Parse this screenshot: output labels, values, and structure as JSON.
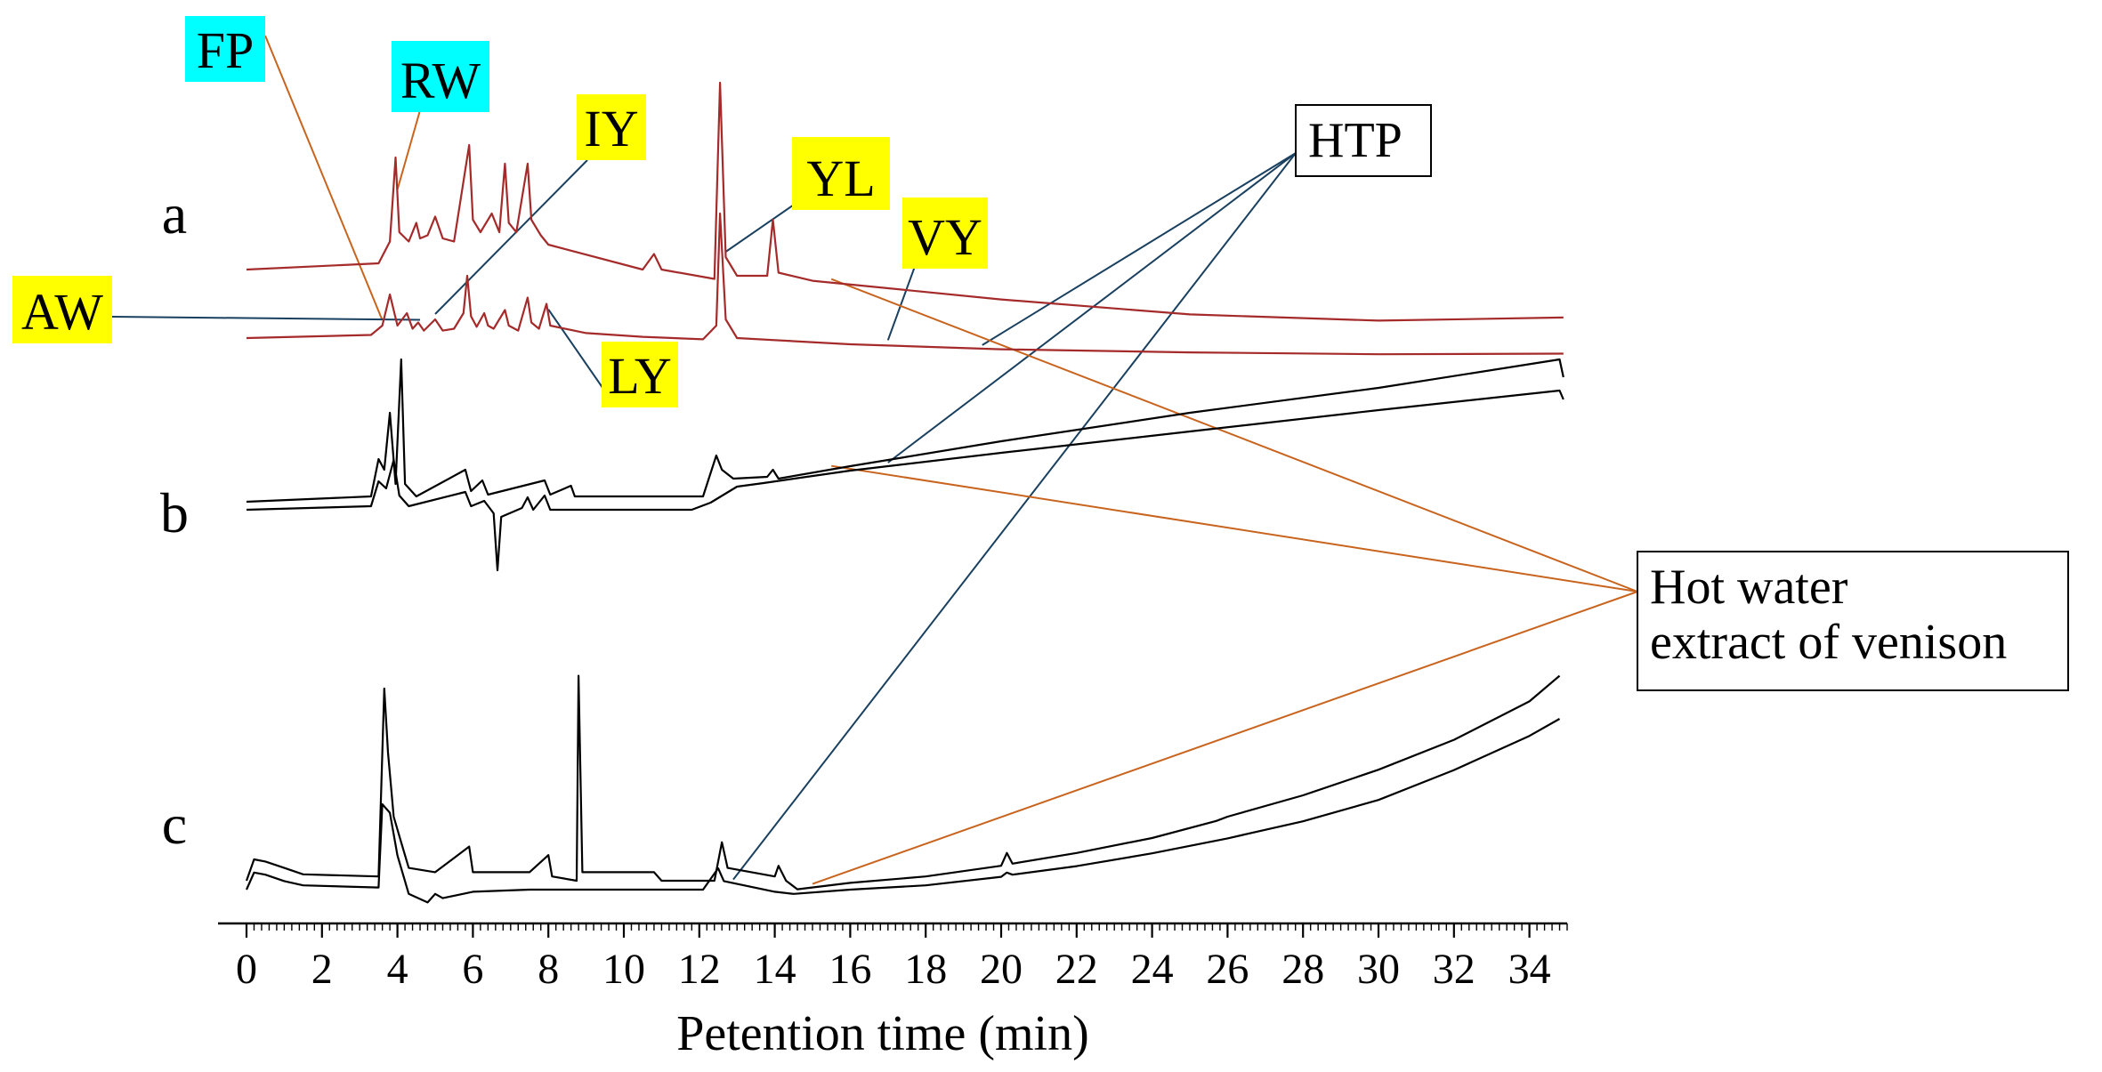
{
  "chart_data": {
    "type": "line",
    "title": "",
    "xlabel": "Petention time (min)",
    "ylabel": "",
    "xlim": [
      0,
      35
    ],
    "x_major_ticks": [
      0,
      2,
      4,
      6,
      8,
      10,
      12,
      14,
      16,
      18,
      20,
      22,
      24,
      26,
      28,
      30,
      32,
      34
    ],
    "x_minor_step": 0.2,
    "grid": false,
    "panels": [
      {
        "label": "a",
        "color": "#a52a2a",
        "series": [
          {
            "name": "HTP",
            "points": [
              [
                0,
                0
              ],
              [
                3.3,
                0.005
              ],
              [
                3.6,
                0.02
              ],
              [
                3.8,
                0.07
              ],
              [
                4.0,
                0.02
              ],
              [
                4.25,
                0.04
              ],
              [
                4.4,
                0.015
              ],
              [
                4.55,
                0.025
              ],
              [
                4.7,
                0.012
              ],
              [
                5.0,
                0.03
              ],
              [
                5.2,
                0.012
              ],
              [
                5.5,
                0.015
              ],
              [
                5.75,
                0.04
              ],
              [
                5.85,
                0.1
              ],
              [
                5.95,
                0.035
              ],
              [
                6.1,
                0.018
              ],
              [
                6.3,
                0.04
              ],
              [
                6.4,
                0.02
              ],
              [
                6.55,
                0.015
              ],
              [
                6.85,
                0.045
              ],
              [
                6.95,
                0.02
              ],
              [
                7.2,
                0.012
              ],
              [
                7.45,
                0.065
              ],
              [
                7.55,
                0.025
              ],
              [
                7.75,
                0.015
              ],
              [
                7.95,
                0.055
              ],
              [
                8.05,
                0.02
              ],
              [
                9.0,
                0.008
              ],
              [
                10.5,
                0.002
              ],
              [
                12.1,
                -0.002
              ],
              [
                12.45,
                0.02
              ],
              [
                12.55,
                0.2
              ],
              [
                12.7,
                0.03
              ],
              [
                13.0,
                0.0
              ],
              [
                16.0,
                -0.01
              ],
              [
                20.0,
                -0.018
              ],
              [
                25.0,
                -0.023
              ],
              [
                30.0,
                -0.026
              ],
              [
                34.9,
                -0.025
              ]
            ]
          },
          {
            "name": "Hot water extract of venison",
            "points": [
              [
                0,
                0
              ],
              [
                3.5,
                0.01
              ],
              [
                3.8,
                0.045
              ],
              [
                3.95,
                0.18
              ],
              [
                4.05,
                0.06
              ],
              [
                4.3,
                0.045
              ],
              [
                4.5,
                0.075
              ],
              [
                4.6,
                0.05
              ],
              [
                4.8,
                0.055
              ],
              [
                5.0,
                0.085
              ],
              [
                5.2,
                0.05
              ],
              [
                5.5,
                0.045
              ],
              [
                5.9,
                0.2
              ],
              [
                6.0,
                0.08
              ],
              [
                6.2,
                0.06
              ],
              [
                6.5,
                0.09
              ],
              [
                6.7,
                0.06
              ],
              [
                6.85,
                0.17
              ],
              [
                6.95,
                0.075
              ],
              [
                7.15,
                0.06
              ],
              [
                7.45,
                0.17
              ],
              [
                7.55,
                0.08
              ],
              [
                7.8,
                0.055
              ],
              [
                8.0,
                0.04
              ],
              [
                10.5,
                0.0
              ],
              [
                10.8,
                0.025
              ],
              [
                11.0,
                0.0
              ],
              [
                12.4,
                -0.015
              ],
              [
                12.55,
                0.3
              ],
              [
                12.7,
                0.02
              ],
              [
                13.0,
                -0.01
              ],
              [
                13.8,
                -0.01
              ],
              [
                13.95,
                0.08
              ],
              [
                14.1,
                -0.005
              ],
              [
                15.0,
                -0.018
              ],
              [
                20.0,
                -0.048
              ],
              [
                25.0,
                -0.072
              ],
              [
                30.0,
                -0.082
              ],
              [
                34.9,
                -0.077
              ]
            ]
          }
        ]
      },
      {
        "label": "b",
        "color": "#000000",
        "series": [
          {
            "name": "HTP",
            "points": [
              [
                0,
                0
              ],
              [
                3.3,
                0.01
              ],
              [
                3.5,
                0.08
              ],
              [
                3.7,
                0.06
              ],
              [
                3.9,
                0.14
              ],
              [
                4.05,
                0.04
              ],
              [
                4.3,
                0.01
              ],
              [
                5.8,
                0.05
              ],
              [
                5.95,
                0.01
              ],
              [
                6.3,
                0.025
              ],
              [
                6.55,
                -0.01
              ],
              [
                6.65,
                -0.17
              ],
              [
                6.75,
                -0.02
              ],
              [
                7.3,
                0.005
              ],
              [
                7.45,
                0.035
              ],
              [
                7.6,
                0.0
              ],
              [
                7.9,
                0.04
              ],
              [
                8.05,
                0.0
              ],
              [
                11.8,
                0.0
              ],
              [
                12.3,
                0.02
              ],
              [
                13.0,
                0.065
              ],
              [
                13.7,
                0.075
              ],
              [
                16.0,
                0.11
              ],
              [
                20.0,
                0.16
              ],
              [
                25.0,
                0.22
              ],
              [
                30.0,
                0.28
              ],
              [
                34.8,
                0.335
              ],
              [
                34.9,
                0.31
              ]
            ]
          },
          {
            "name": "Hot water extract of venison",
            "points": [
              [
                0,
                0
              ],
              [
                3.3,
                0.015
              ],
              [
                3.5,
                0.12
              ],
              [
                3.65,
                0.09
              ],
              [
                3.8,
                0.25
              ],
              [
                3.95,
                0.05
              ],
              [
                4.1,
                0.4
              ],
              [
                4.2,
                0.05
              ],
              [
                4.5,
                0.015
              ],
              [
                5.8,
                0.09
              ],
              [
                5.95,
                0.03
              ],
              [
                6.25,
                0.06
              ],
              [
                6.4,
                0.02
              ],
              [
                7.9,
                0.06
              ],
              [
                8.05,
                0.02
              ],
              [
                8.6,
                0.045
              ],
              [
                8.7,
                0.015
              ],
              [
                12.1,
                0.015
              ],
              [
                12.45,
                0.13
              ],
              [
                12.6,
                0.09
              ],
              [
                12.9,
                0.065
              ],
              [
                13.8,
                0.07
              ],
              [
                13.95,
                0.09
              ],
              [
                14.1,
                0.065
              ],
              [
                16.0,
                0.1
              ],
              [
                20.0,
                0.17
              ],
              [
                25.0,
                0.25
              ],
              [
                30.0,
                0.32
              ],
              [
                34.8,
                0.4
              ],
              [
                34.9,
                0.35
              ]
            ]
          }
        ]
      },
      {
        "label": "c",
        "color": "#000000",
        "series": [
          {
            "name": "HTP",
            "points": [
              [
                0,
                0
              ],
              [
                0.2,
                0.04
              ],
              [
                0.5,
                0.035
              ],
              [
                1.0,
                0.02
              ],
              [
                1.5,
                0.01
              ],
              [
                3.5,
                0.005
              ],
              [
                3.6,
                0.2
              ],
              [
                3.8,
                0.18
              ],
              [
                4.0,
                0.08
              ],
              [
                4.3,
                -0.01
              ],
              [
                4.8,
                -0.03
              ],
              [
                5.0,
                -0.01
              ],
              [
                5.2,
                -0.02
              ],
              [
                6.0,
                -0.005
              ],
              [
                7.5,
                0.0
              ],
              [
                12.1,
                0.0
              ],
              [
                12.5,
                0.05
              ],
              [
                12.65,
                0.02
              ],
              [
                14.0,
                -0.005
              ],
              [
                14.5,
                -0.01
              ],
              [
                16.0,
                0.0
              ],
              [
                18.0,
                0.01
              ],
              [
                20.0,
                0.03
              ],
              [
                20.15,
                0.04
              ],
              [
                20.3,
                0.035
              ],
              [
                22.0,
                0.055
              ],
              [
                24.0,
                0.085
              ],
              [
                26.0,
                0.12
              ],
              [
                28.0,
                0.16
              ],
              [
                30.0,
                0.21
              ],
              [
                32.0,
                0.28
              ],
              [
                34.0,
                0.36
              ],
              [
                34.8,
                0.4
              ]
            ]
          },
          {
            "name": "Hot water extract of venison",
            "points": [
              [
                0,
                0
              ],
              [
                0.2,
                0.05
              ],
              [
                0.5,
                0.045
              ],
              [
                1.0,
                0.03
              ],
              [
                1.5,
                0.015
              ],
              [
                3.5,
                0.01
              ],
              [
                3.65,
                0.45
              ],
              [
                3.75,
                0.3
              ],
              [
                3.9,
                0.15
              ],
              [
                4.1,
                0.09
              ],
              [
                4.3,
                0.03
              ],
              [
                5.0,
                0.02
              ],
              [
                5.9,
                0.08
              ],
              [
                6.0,
                0.02
              ],
              [
                7.5,
                0.02
              ],
              [
                8.0,
                0.06
              ],
              [
                8.1,
                0.01
              ],
              [
                8.75,
                0.0
              ],
              [
                8.8,
                0.48
              ],
              [
                8.9,
                0.02
              ],
              [
                10.8,
                0.02
              ],
              [
                11.0,
                0.0
              ],
              [
                12.4,
                0.0
              ],
              [
                12.6,
                0.09
              ],
              [
                12.75,
                0.03
              ],
              [
                14.0,
                0.01
              ],
              [
                14.1,
                0.035
              ],
              [
                14.3,
                0.0
              ],
              [
                14.6,
                -0.02
              ],
              [
                16.0,
                -0.005
              ],
              [
                18.0,
                0.01
              ],
              [
                20.0,
                0.035
              ],
              [
                20.15,
                0.065
              ],
              [
                20.3,
                0.04
              ],
              [
                22.0,
                0.065
              ],
              [
                24.0,
                0.1
              ],
              [
                25.7,
                0.14
              ],
              [
                26.0,
                0.15
              ],
              [
                28.0,
                0.2
              ],
              [
                30.0,
                0.26
              ],
              [
                32.0,
                0.33
              ],
              [
                34.0,
                0.42
              ],
              [
                34.8,
                0.48
              ]
            ]
          }
        ]
      }
    ],
    "peak_labels": [
      {
        "text": "FP",
        "highlight": "#00ffff",
        "x": 3.6,
        "panel": "a",
        "series": 0
      },
      {
        "text": "RW",
        "highlight": "#00ffff",
        "x": 4.0,
        "panel": "a",
        "series": 1
      },
      {
        "text": "IY",
        "highlight": "#ffff00",
        "x": 5.0,
        "panel": "a",
        "series": 0
      },
      {
        "text": "YL",
        "highlight": "#ffff00",
        "x": 12.7,
        "panel": "a",
        "series": 1
      },
      {
        "text": "VY",
        "highlight": "#ffff00",
        "x": 17.0,
        "panel": "a",
        "series": 0
      },
      {
        "text": "AW",
        "highlight": "#ffff00",
        "x": 4.6,
        "panel": "a",
        "series": 0
      },
      {
        "text": "LY",
        "highlight": "#ffff00",
        "x": 8.0,
        "panel": "a",
        "series": 0
      }
    ],
    "annotations": [
      {
        "text": "HTP",
        "boxed": true,
        "series": 0,
        "targets": [
          [
            19.5,
            "a"
          ],
          [
            17.0,
            "b"
          ],
          [
            12.9,
            "c"
          ]
        ],
        "line_color": "#1a4060"
      },
      {
        "text": "Hot water extract of venison",
        "lines": [
          "Hot water",
          "extract of venison"
        ],
        "boxed": true,
        "series": 1,
        "targets": [
          [
            15.5,
            "a"
          ],
          [
            15.5,
            "b"
          ],
          [
            15.0,
            "c"
          ]
        ],
        "line_color": "#c9641e"
      }
    ]
  }
}
